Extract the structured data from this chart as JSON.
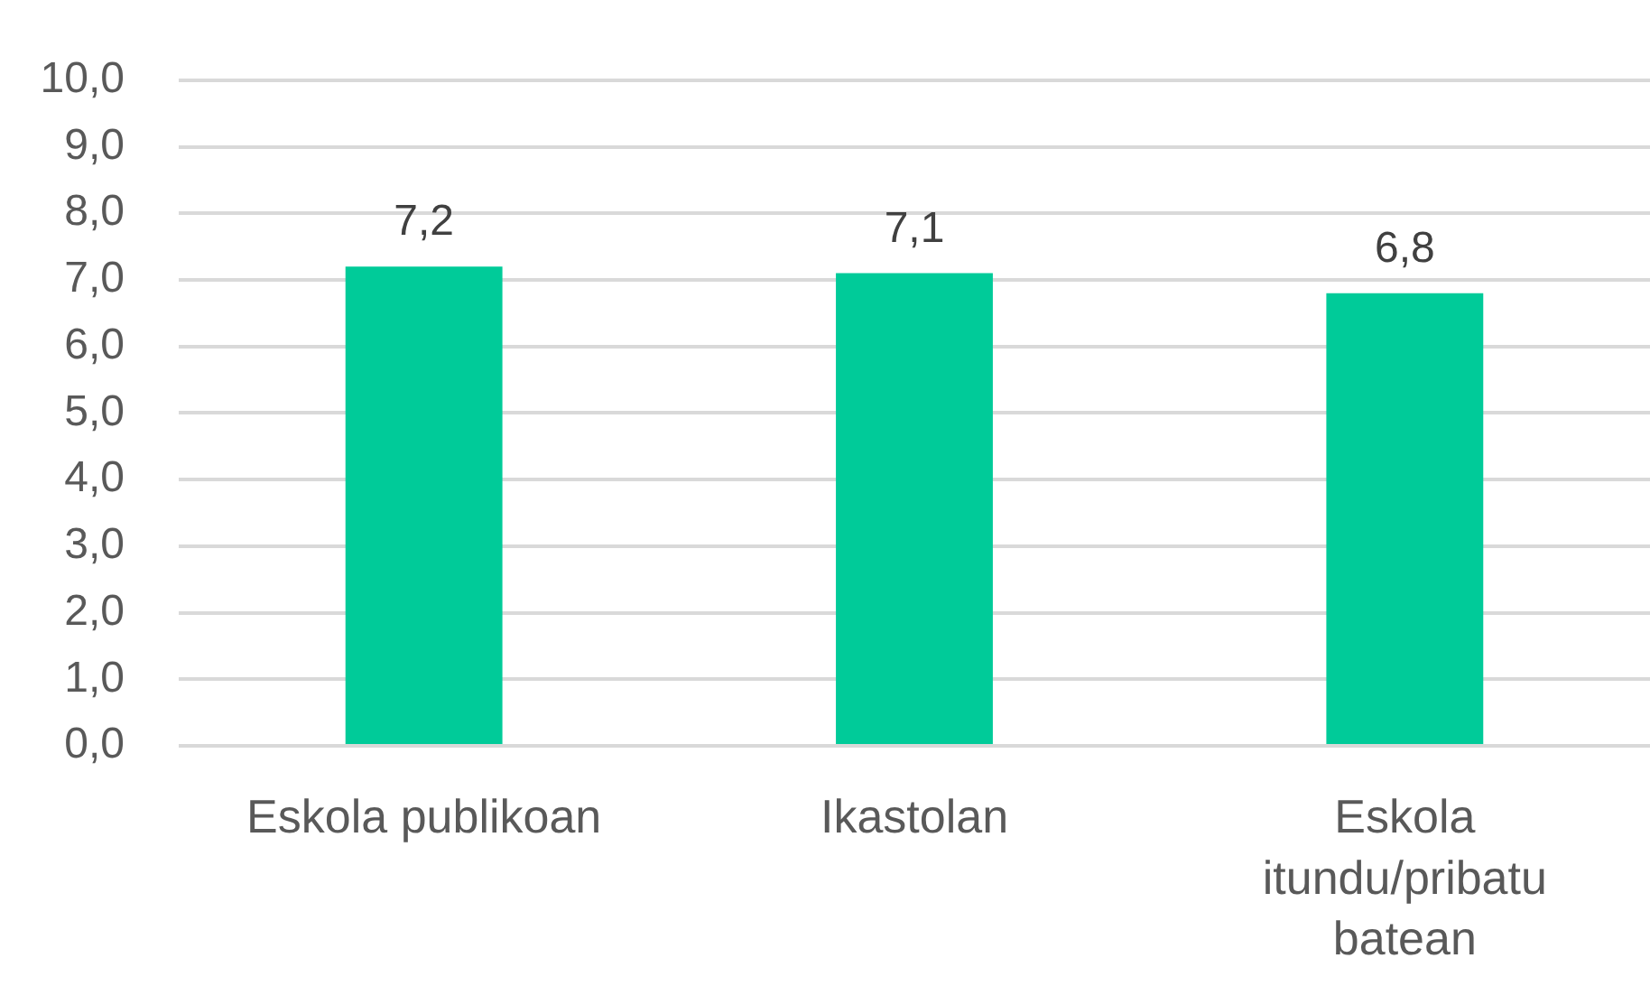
{
  "chart_data": {
    "type": "bar",
    "categories": [
      "Eskola publikoan",
      "Ikastolan",
      "Eskola itundu/pribatu batean"
    ],
    "values": [
      7.2,
      7.1,
      6.8
    ],
    "color": "#00cb99",
    "value_labels": [
      "7,2",
      "7,1",
      "6,8"
    ],
    "ylim": [
      0,
      10
    ],
    "yticks": [
      {
        "value": 0,
        "label": "0,0"
      },
      {
        "value": 1,
        "label": "1,0"
      },
      {
        "value": 2,
        "label": "2,0"
      },
      {
        "value": 3,
        "label": "3,0"
      },
      {
        "value": 4,
        "label": "4,0"
      },
      {
        "value": 5,
        "label": "5,0"
      },
      {
        "value": 6,
        "label": "6,0"
      },
      {
        "value": 7,
        "label": "7,0"
      },
      {
        "value": 8,
        "label": "8,0"
      },
      {
        "value": 9,
        "label": "9,0"
      },
      {
        "value": 10,
        "label": "10,0"
      }
    ],
    "grid": "y"
  }
}
